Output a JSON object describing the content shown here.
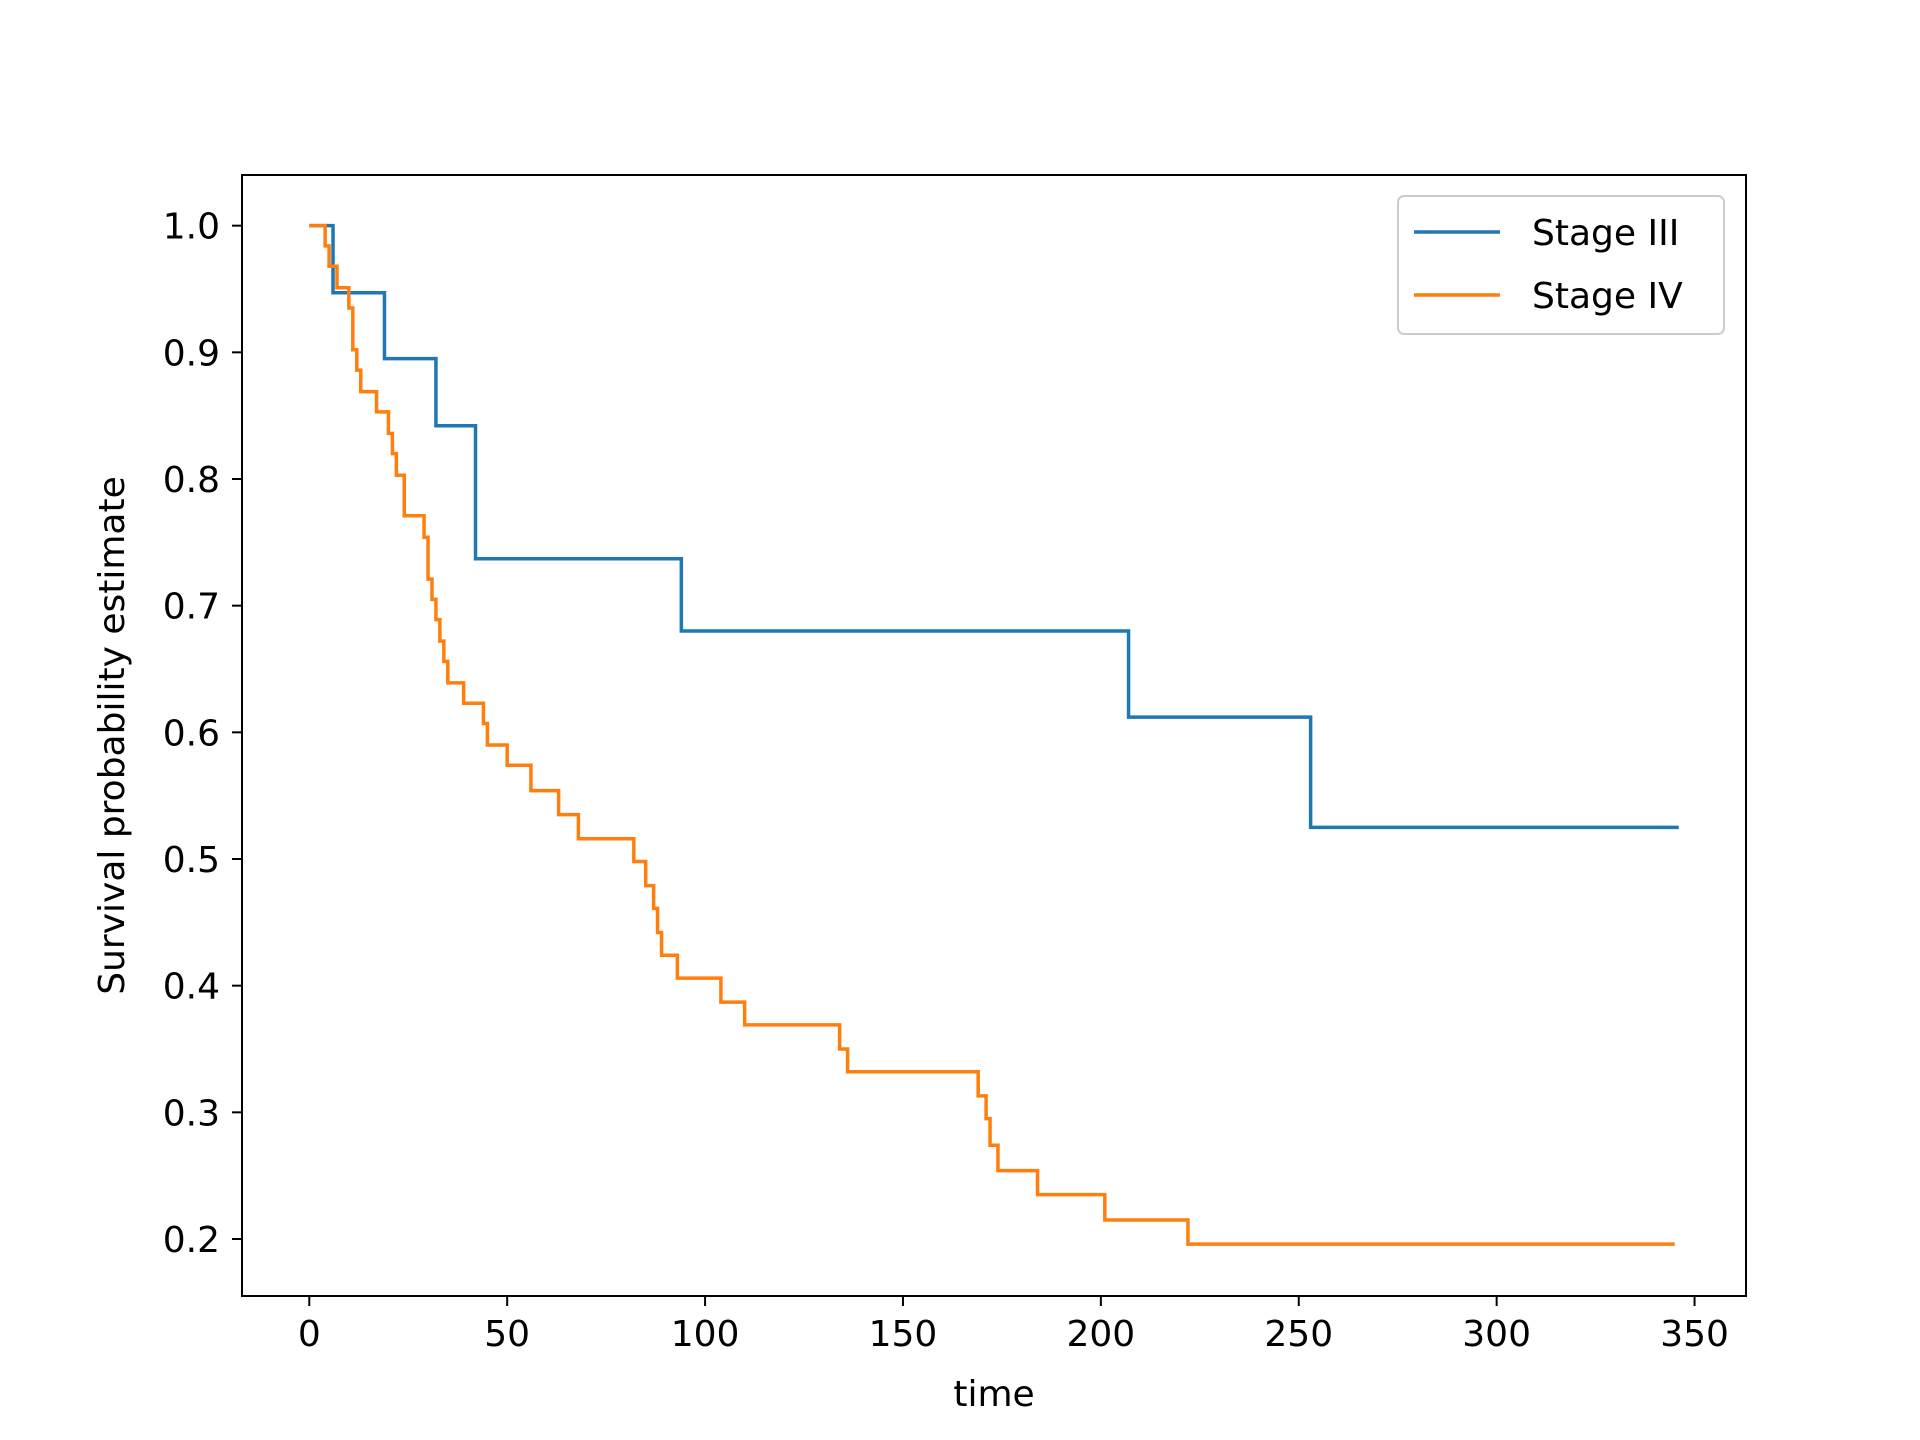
{
  "chart_data": {
    "type": "line",
    "step": "post",
    "xlabel": "time",
    "ylabel": "Survival probability estimate",
    "xlim": [
      -17,
      363
    ],
    "ylim": [
      0.155,
      1.04
    ],
    "xticks": [
      0,
      50,
      100,
      150,
      200,
      250,
      300,
      350
    ],
    "yticks": [
      0.2,
      0.3,
      0.4,
      0.5,
      0.6,
      0.7,
      0.8,
      0.9,
      1.0
    ],
    "xtick_labels": [
      "0",
      "50",
      "100",
      "150",
      "200",
      "250",
      "300",
      "350"
    ],
    "ytick_labels": [
      "0.2",
      "0.3",
      "0.4",
      "0.5",
      "0.6",
      "0.7",
      "0.8",
      "0.9",
      "1.0"
    ],
    "grid": false,
    "legend_position": "top-right",
    "series": [
      {
        "name": "Stage III",
        "color": "#1f77b4",
        "x": [
          0,
          6,
          19,
          32,
          42,
          94,
          207,
          253,
          346
        ],
        "y": [
          1.0,
          0.947,
          0.895,
          0.842,
          0.737,
          0.68,
          0.612,
          0.525,
          0.525
        ]
      },
      {
        "name": "Stage IV",
        "color": "#ff7f0e",
        "x": [
          0,
          4,
          5,
          7,
          10,
          11,
          12,
          13,
          17,
          20,
          21,
          22,
          24,
          29,
          30,
          31,
          32,
          33,
          34,
          35,
          39,
          40,
          44,
          45,
          46,
          50,
          56,
          63,
          68,
          82,
          85,
          87,
          88,
          89,
          90,
          93,
          104,
          110,
          134,
          136,
          137,
          169,
          171,
          172,
          174,
          175,
          184,
          201,
          222,
          345
        ],
        "y": [
          1.0,
          0.984,
          0.968,
          0.951,
          0.935,
          0.902,
          0.886,
          0.869,
          0.853,
          0.836,
          0.82,
          0.803,
          0.771,
          0.754,
          0.721,
          0.705,
          0.689,
          0.672,
          0.656,
          0.639,
          0.623,
          0.623,
          0.607,
          0.59,
          0.59,
          0.574,
          0.554,
          0.535,
          0.516,
          0.498,
          0.479,
          0.461,
          0.442,
          0.424,
          0.424,
          0.406,
          0.387,
          0.369,
          0.35,
          0.332,
          0.332,
          0.313,
          0.295,
          0.274,
          0.254,
          0.254,
          0.235,
          0.215,
          0.196,
          0.196
        ]
      }
    ]
  }
}
